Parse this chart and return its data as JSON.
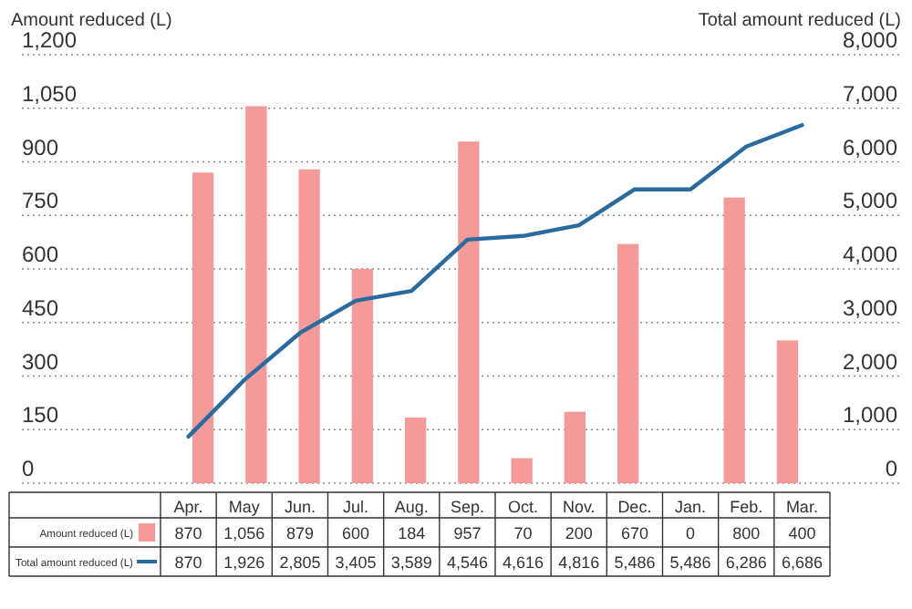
{
  "chart_data": {
    "type": "bar",
    "ylabel": "Amount reduced (L)",
    "y2label": "Total amount reduced (L)",
    "categories": [
      "Apr.",
      "May",
      "Jun.",
      "Jul.",
      "Aug.",
      "Sep.",
      "Oct.",
      "Nov.",
      "Dec.",
      "Jan.",
      "Feb.",
      "Mar."
    ],
    "series": [
      {
        "name": "Amount reduced (L)",
        "color": "#f49a9b",
        "values": [
          870,
          1056,
          879,
          600,
          184,
          957,
          70,
          200,
          670,
          0,
          800,
          400
        ],
        "value_labels": [
          "870",
          "1,056",
          "879",
          "600",
          "184",
          "957",
          "70",
          "200",
          "670",
          "0",
          "800",
          "400"
        ]
      },
      {
        "name": "Total amount reduced (L)",
        "type": "line",
        "axis": "y2",
        "color": "#2b6a9c",
        "values": [
          870,
          1926,
          2805,
          3405,
          3589,
          4546,
          4616,
          4816,
          5486,
          5486,
          6286,
          6686
        ],
        "value_labels": [
          "870",
          "1,926",
          "2,805",
          "3,405",
          "3,589",
          "4,546",
          "4,616",
          "4,816",
          "5,486",
          "5,486",
          "6,286",
          "6,686"
        ]
      }
    ],
    "ylim": [
      0,
      1200
    ],
    "yticks": [
      {
        "value": 0,
        "label": "0"
      },
      {
        "value": 150,
        "label": "150"
      },
      {
        "value": 300,
        "label": "300"
      },
      {
        "value": 450,
        "label": "450"
      },
      {
        "value": 600,
        "label": "600"
      },
      {
        "value": 750,
        "label": "750"
      },
      {
        "value": 900,
        "label": "900"
      },
      {
        "value": 1050,
        "label": "1,050"
      },
      {
        "value": 1200,
        "label": "1,200"
      }
    ],
    "y2lim": [
      0,
      8000
    ],
    "y2ticks": [
      {
        "value": 0,
        "label": "0"
      },
      {
        "value": 1000,
        "label": "1,000"
      },
      {
        "value": 2000,
        "label": "2,000"
      },
      {
        "value": 3000,
        "label": "3,000"
      },
      {
        "value": 4000,
        "label": "4,000"
      },
      {
        "value": 5000,
        "label": "5,000"
      },
      {
        "value": 6000,
        "label": "6,000"
      },
      {
        "value": 7000,
        "label": "7,000"
      },
      {
        "value": 8000,
        "label": "8,000"
      }
    ],
    "grid": "y",
    "legend": "bottom",
    "marker": "none",
    "line_style": "solid"
  }
}
